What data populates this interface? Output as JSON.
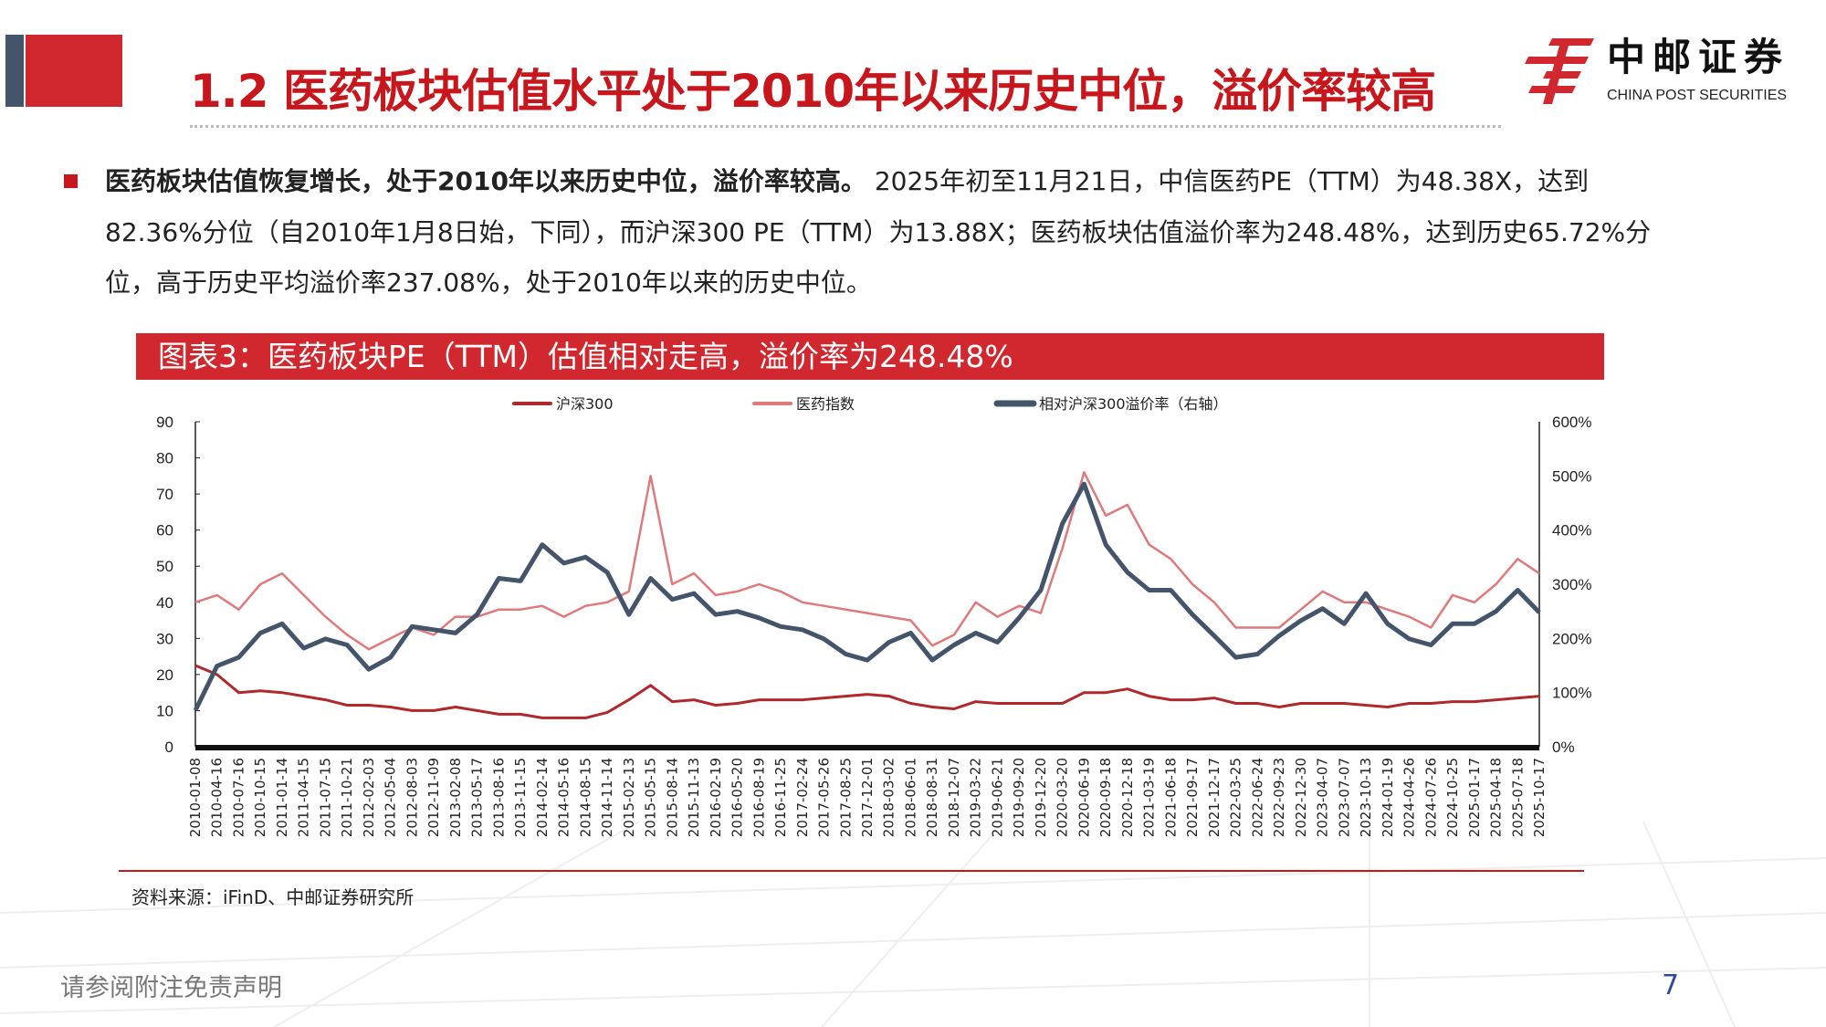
{
  "header": {
    "title": "1.2 医药板块估值水平处于2010年以来历史中位，溢价率较高",
    "logo_cn": "中邮证券",
    "logo_en": "CHINA POST SECURITIES"
  },
  "body": {
    "bold_lead": "医药板块估值恢复增长，处于2010年以来历史中位，溢价率较高。",
    "line1_rest": "2025年初至11月21日，中信医药PE（TTM）为48.38X，达到",
    "line2": "82.36%分位（自2010年1月8日始，下同），而沪深300 PE（TTM）为13.88X；医药板块估值溢价率为248.48%，达到历史65.72%分",
    "line3": "位，高于历史平均溢价率237.08%，处于2010年以来的历史中位。"
  },
  "figure": {
    "caption": "图表3：医药板块PE（TTM）估值相对走高，溢价率为248.48%",
    "source": "资料来源：iFinD、中邮证券研究所"
  },
  "footer": {
    "disclaimer": "请参阅附注免责声明",
    "page_number": "7"
  },
  "colors": {
    "brand_red": "#c8161d",
    "hs300": "#b0282c",
    "pharma": "#e07a7a",
    "premium": "#44546a"
  },
  "chart_data": {
    "type": "line",
    "grid": false,
    "legend_position": "top",
    "y_left": {
      "range": [
        0,
        90
      ],
      "ticks": [
        "0",
        "10",
        "20",
        "30",
        "40",
        "50",
        "60",
        "70",
        "80",
        "90"
      ]
    },
    "y_right": {
      "range": [
        0,
        600
      ],
      "ticks": [
        "0%",
        "100%",
        "200%",
        "300%",
        "400%",
        "500%",
        "600%"
      ]
    },
    "categories": [
      "2010-01-08",
      "2010-04-16",
      "2010-07-16",
      "2010-10-15",
      "2011-01-14",
      "2011-04-15",
      "2011-07-15",
      "2011-10-21",
      "2012-02-03",
      "2012-05-04",
      "2012-08-03",
      "2012-11-09",
      "2013-02-08",
      "2013-05-17",
      "2013-08-16",
      "2013-11-15",
      "2014-02-14",
      "2014-05-16",
      "2014-08-15",
      "2014-11-14",
      "2015-02-13",
      "2015-05-15",
      "2015-08-14",
      "2015-11-13",
      "2016-02-19",
      "2016-05-20",
      "2016-08-19",
      "2016-11-25",
      "2017-02-24",
      "2017-05-26",
      "2017-08-25",
      "2017-12-01",
      "2018-03-02",
      "2018-06-01",
      "2018-08-31",
      "2018-12-07",
      "2019-03-22",
      "2019-06-21",
      "2019-09-20",
      "2019-12-20",
      "2020-03-20",
      "2020-06-19",
      "2020-09-18",
      "2020-12-18",
      "2021-03-19",
      "2021-06-18",
      "2021-09-17",
      "2021-12-17",
      "2022-03-25",
      "2022-06-24",
      "2022-09-23",
      "2022-12-30",
      "2023-04-07",
      "2023-07-07",
      "2023-10-13",
      "2024-01-19",
      "2024-04-26",
      "2024-07-26",
      "2024-10-25",
      "2025-01-17",
      "2025-04-18",
      "2025-07-18",
      "2025-10-17"
    ],
    "series": [
      {
        "name": "沪深300",
        "axis": "left",
        "values": [
          22.5,
          20,
          15,
          15.5,
          15,
          14,
          13,
          11.5,
          11.5,
          11,
          10,
          10,
          11,
          10,
          9,
          9,
          8,
          8,
          8,
          9.5,
          13,
          17,
          12.5,
          13,
          11.5,
          12,
          13,
          13,
          13,
          13.5,
          14,
          14.5,
          14,
          12,
          11,
          10.5,
          12.5,
          12,
          12,
          12,
          12,
          15,
          15,
          16,
          14,
          13,
          13,
          13.5,
          12,
          12,
          11,
          12,
          12,
          12,
          11.5,
          11,
          12,
          12,
          12.5,
          12.5,
          13,
          13.5,
          14
        ]
      },
      {
        "name": "医药指数",
        "axis": "left",
        "values": [
          40,
          42,
          38,
          45,
          48,
          42,
          36,
          31,
          27,
          30,
          33,
          31,
          36,
          36,
          38,
          38,
          39,
          36,
          39,
          40,
          43,
          75,
          45,
          48,
          42,
          43,
          45,
          43,
          40,
          39,
          38,
          37,
          36,
          35,
          28,
          31,
          40,
          36,
          39,
          37,
          55,
          76,
          64,
          67,
          56,
          52,
          45,
          40,
          33,
          33,
          33,
          38,
          43,
          40,
          40,
          38,
          36,
          33,
          42,
          40,
          45,
          52,
          48
        ]
      },
      {
        "name": "相对沪深300溢价率（右轴）",
        "axis": "right",
        "values": [
          67,
          149,
          165,
          210,
          227,
          182,
          199,
          188,
          143,
          165,
          222,
          216,
          210,
          244,
          311,
          306,
          373,
          339,
          350,
          322,
          244,
          311,
          272,
          283,
          244,
          250,
          238,
          222,
          216,
          199,
          171,
          160,
          193,
          210,
          160,
          188,
          210,
          193,
          238,
          289,
          412,
          485,
          373,
          322,
          289,
          289,
          244,
          205,
          165,
          171,
          205,
          233,
          255,
          227,
          283,
          227,
          199,
          188,
          227,
          227,
          250,
          289,
          248
        ]
      }
    ]
  }
}
